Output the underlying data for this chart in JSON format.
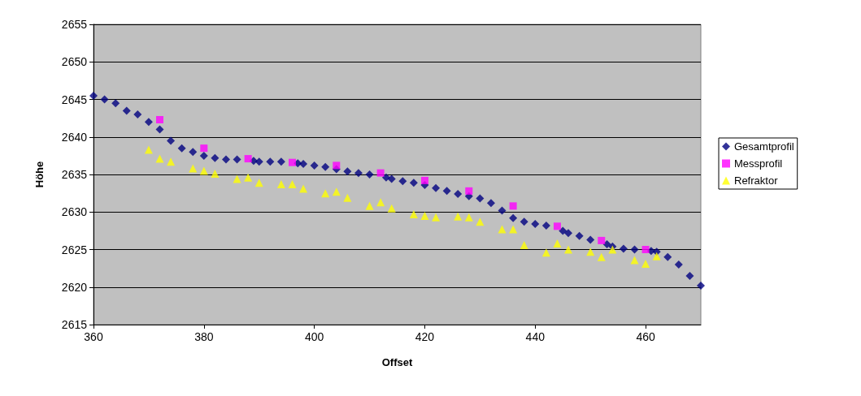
{
  "chart_data": {
    "type": "scatter",
    "xlabel": "Offset",
    "ylabel": "Höhe",
    "xlim": [
      360,
      470
    ],
    "xticks": [
      360,
      380,
      400,
      420,
      440,
      460
    ],
    "ylim": [
      2615,
      2655
    ],
    "yticks": [
      2615,
      2620,
      2625,
      2630,
      2635,
      2640,
      2645,
      2650,
      2655
    ],
    "grid": "y",
    "legend": "right",
    "series": [
      {
        "name": "Gesamtprofil",
        "color": "#000080",
        "marker": "diamond",
        "x": [
          360,
          362,
          364,
          366,
          368,
          370,
          372,
          374,
          376,
          378,
          380,
          382,
          384,
          386,
          389,
          390,
          392,
          394,
          397,
          398,
          400,
          402,
          404,
          406,
          408,
          410,
          413,
          414,
          416,
          418,
          420,
          422,
          424,
          426,
          428,
          430,
          432,
          434,
          436,
          438,
          440,
          442,
          445,
          446,
          448,
          450,
          453,
          454,
          456,
          458,
          461,
          462,
          464,
          466,
          468,
          470
        ],
        "values": [
          2645.5,
          2645,
          2644.5,
          2643.5,
          2643,
          2642,
          2641,
          2639.5,
          2638.5,
          2638,
          2637.5,
          2637.2,
          2637,
          2637,
          2636.8,
          2636.7,
          2636.7,
          2636.7,
          2636.5,
          2636.4,
          2636.2,
          2636,
          2635.7,
          2635.4,
          2635.2,
          2635,
          2634.6,
          2634.4,
          2634.1,
          2633.9,
          2633.6,
          2633.2,
          2632.8,
          2632.4,
          2632.1,
          2631.8,
          2631.2,
          2630.2,
          2629.2,
          2628.7,
          2628.4,
          2628.2,
          2627.5,
          2627.2,
          2626.8,
          2626.3,
          2625.7,
          2625.4,
          2625.1,
          2625,
          2624.8,
          2624.7,
          2624,
          2623,
          2621.5,
          2620.2
        ]
      },
      {
        "name": "Messprofil",
        "color": "#ff00ff",
        "marker": "square",
        "x": [
          372,
          380,
          388,
          396,
          404,
          412,
          420,
          428,
          436,
          444,
          452,
          460
        ],
        "values": [
          2642.3,
          2638.5,
          2637.1,
          2636.6,
          2636.2,
          2635.2,
          2634.2,
          2632.8,
          2630.8,
          2628.1,
          2626.2,
          2625
        ]
      },
      {
        "name": "Refraktor",
        "color": "#ffff00",
        "marker": "triangle",
        "x": [
          370,
          372,
          374,
          378,
          380,
          382,
          386,
          388,
          390,
          394,
          396,
          398,
          402,
          404,
          406,
          410,
          412,
          414,
          418,
          420,
          422,
          426,
          428,
          430,
          434,
          436,
          438,
          442,
          444,
          446,
          450,
          452,
          454,
          458,
          460,
          462
        ],
        "values": [
          2638.3,
          2637.1,
          2636.7,
          2635.8,
          2635.5,
          2635.1,
          2634.4,
          2634.6,
          2633.9,
          2633.7,
          2633.7,
          2633.1,
          2632.5,
          2632.7,
          2631.9,
          2630.8,
          2631.3,
          2630.5,
          2629.7,
          2629.5,
          2629.3,
          2629.4,
          2629.3,
          2628.7,
          2627.7,
          2627.7,
          2625.6,
          2624.6,
          2625.8,
          2625,
          2624.7,
          2624,
          2625,
          2623.6,
          2623.1,
          2624.1
        ]
      }
    ]
  }
}
